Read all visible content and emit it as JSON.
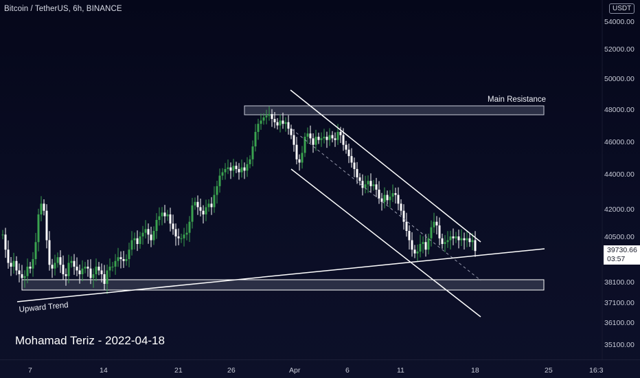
{
  "header": {
    "symbol_line": "Bitcoin / TetherUS, 6h, BINANCE",
    "currency": "USDT"
  },
  "price_badge": {
    "price": "39730.66",
    "countdown": "03:57"
  },
  "signature": "Mohamad Teriz - 2022-04-18",
  "annotations": {
    "resistance": "Main Resistance",
    "trend": "Upward Trend"
  },
  "colors": {
    "up": "#3aa34f",
    "down": "#ffffff",
    "line": "#ffffff",
    "zone_fill": "#2b2f45",
    "background": "#07091d"
  },
  "chart_data": {
    "type": "candlestick",
    "title": "Bitcoin / TetherUS, 6h, BINANCE",
    "y_ticks": [
      "54000.00",
      "52000.00",
      "50000.00",
      "48000.00",
      "46000.00",
      "44000.00",
      "42000.00",
      "40500.00",
      "38100.00",
      "37100.00",
      "36100.00",
      "35100.00"
    ],
    "x_ticks": [
      "7",
      "14",
      "21",
      "26",
      "Apr",
      "6",
      "11",
      "18",
      "25",
      "16:3"
    ],
    "key_levels": {
      "main_resistance": [
        47800,
        48200
      ],
      "support": [
        37700,
        38200
      ]
    },
    "last_price": 39730.66,
    "close_path": [
      [
        0,
        40600
      ],
      [
        4,
        39800
      ],
      [
        8,
        39100
      ],
      [
        12,
        38900
      ],
      [
        16,
        39200
      ],
      [
        20,
        38700
      ],
      [
        24,
        38500
      ],
      [
        28,
        38300
      ],
      [
        32,
        38400
      ],
      [
        36,
        38900
      ],
      [
        40,
        38800
      ],
      [
        44,
        39300
      ],
      [
        48,
        40200
      ],
      [
        52,
        41700
      ],
      [
        56,
        42300
      ],
      [
        60,
        41900
      ],
      [
        64,
        40300
      ],
      [
        68,
        39000
      ],
      [
        72,
        38800
      ],
      [
        76,
        39100
      ],
      [
        80,
        39400
      ],
      [
        84,
        39000
      ],
      [
        88,
        38500
      ],
      [
        92,
        38400
      ],
      [
        96,
        39100
      ],
      [
        100,
        39200
      ],
      [
        104,
        38900
      ],
      [
        108,
        38700
      ],
      [
        112,
        38500
      ],
      [
        116,
        38800
      ],
      [
        120,
        38900
      ],
      [
        124,
        38800
      ],
      [
        128,
        38300
      ],
      [
        132,
        38500
      ],
      [
        136,
        38900
      ],
      [
        140,
        38700
      ],
      [
        144,
        38500
      ],
      [
        148,
        38000
      ],
      [
        152,
        38700
      ],
      [
        156,
        38900
      ],
      [
        160,
        38900
      ],
      [
        164,
        39200
      ],
      [
        168,
        39400
      ],
      [
        172,
        39300
      ],
      [
        176,
        39200
      ],
      [
        180,
        39300
      ],
      [
        184,
        39800
      ],
      [
        188,
        40300
      ],
      [
        192,
        40400
      ],
      [
        196,
        40100
      ],
      [
        200,
        40500
      ],
      [
        204,
        40700
      ],
      [
        208,
        40900
      ],
      [
        212,
        40600
      ],
      [
        216,
        40300
      ],
      [
        220,
        40800
      ],
      [
        224,
        41400
      ],
      [
        228,
        41600
      ],
      [
        232,
        41800
      ],
      [
        236,
        41600
      ],
      [
        240,
        41700
      ],
      [
        244,
        41200
      ],
      [
        248,
        40900
      ],
      [
        252,
        40500
      ],
      [
        256,
        40400
      ],
      [
        260,
        40400
      ],
      [
        264,
        40600
      ],
      [
        268,
        40700
      ],
      [
        272,
        41300
      ],
      [
        276,
        42200
      ],
      [
        280,
        42400
      ],
      [
        284,
        42100
      ],
      [
        288,
        41900
      ],
      [
        292,
        41700
      ],
      [
        296,
        42100
      ],
      [
        300,
        42300
      ],
      [
        304,
        42100
      ],
      [
        308,
        42800
      ],
      [
        312,
        43300
      ],
      [
        316,
        43900
      ],
      [
        320,
        44100
      ],
      [
        324,
        44300
      ],
      [
        328,
        44400
      ],
      [
        332,
        44200
      ],
      [
        336,
        44500
      ],
      [
        340,
        44300
      ],
      [
        344,
        44100
      ],
      [
        348,
        44400
      ],
      [
        352,
        44200
      ],
      [
        356,
        44600
      ],
      [
        360,
        44900
      ],
      [
        364,
        45700
      ],
      [
        368,
        46600
      ],
      [
        372,
        47100
      ],
      [
        376,
        47300
      ],
      [
        380,
        47500
      ],
      [
        384,
        47600
      ],
      [
        388,
        47700
      ],
      [
        392,
        47400
      ],
      [
        396,
        47200
      ],
      [
        400,
        47000
      ],
      [
        404,
        47300
      ],
      [
        408,
        47100
      ],
      [
        412,
        47200
      ],
      [
        416,
        46800
      ],
      [
        420,
        46400
      ],
      [
        424,
        45800
      ],
      [
        428,
        44900
      ],
      [
        432,
        44700
      ],
      [
        436,
        45300
      ],
      [
        440,
        46300
      ],
      [
        444,
        46500
      ],
      [
        448,
        46200
      ],
      [
        452,
        45800
      ],
      [
        456,
        46300
      ],
      [
        460,
        46100
      ],
      [
        464,
        46200
      ],
      [
        468,
        46300
      ],
      [
        472,
        46100
      ],
      [
        476,
        46400
      ],
      [
        480,
        46200
      ],
      [
        484,
        46100
      ],
      [
        488,
        46600
      ],
      [
        492,
        46400
      ],
      [
        496,
        45800
      ],
      [
        500,
        45500
      ],
      [
        504,
        45100
      ],
      [
        508,
        44700
      ],
      [
        512,
        44300
      ],
      [
        516,
        43800
      ],
      [
        520,
        43600
      ],
      [
        524,
        43200
      ],
      [
        528,
        43400
      ],
      [
        532,
        43600
      ],
      [
        536,
        43300
      ],
      [
        540,
        43400
      ],
      [
        544,
        43100
      ],
      [
        548,
        42600
      ],
      [
        552,
        42400
      ],
      [
        556,
        42800
      ],
      [
        560,
        42500
      ],
      [
        564,
        42700
      ],
      [
        568,
        42900
      ],
      [
        572,
        42800
      ],
      [
        576,
        42300
      ],
      [
        580,
        41900
      ],
      [
        584,
        41300
      ],
      [
        588,
        40800
      ],
      [
        592,
        40300
      ],
      [
        596,
        39800
      ],
      [
        600,
        39600
      ],
      [
        604,
        39700
      ],
      [
        608,
        40100
      ],
      [
        612,
        40200
      ],
      [
        616,
        39800
      ],
      [
        620,
        40400
      ],
      [
        624,
        41000
      ],
      [
        628,
        41300
      ],
      [
        632,
        41100
      ],
      [
        636,
        40400
      ],
      [
        640,
        40100
      ],
      [
        644,
        40200
      ],
      [
        648,
        40300
      ],
      [
        652,
        40500
      ],
      [
        656,
        40400
      ],
      [
        660,
        40500
      ],
      [
        664,
        40300
      ],
      [
        668,
        40400
      ],
      [
        672,
        40300
      ],
      [
        676,
        40400
      ],
      [
        680,
        40200
      ],
      [
        684,
        40300
      ],
      [
        688,
        39730
      ]
    ]
  }
}
